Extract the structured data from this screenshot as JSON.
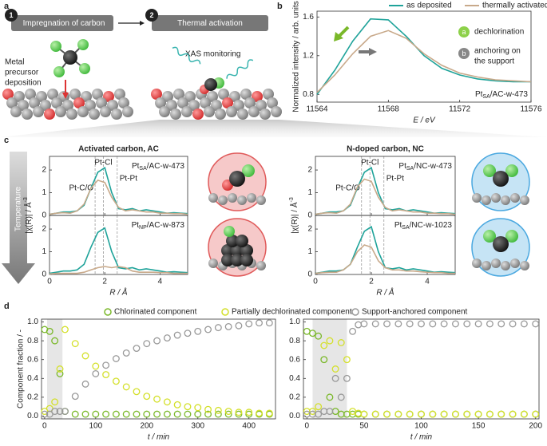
{
  "panel_labels": [
    "a",
    "b",
    "c",
    "d"
  ],
  "panel_a": {
    "steps": [
      {
        "number": "1",
        "label": "Impregnation of carbon"
      },
      {
        "number": "2",
        "label": "Thermal activation"
      }
    ],
    "precursor_label": [
      "Metal",
      "precursor",
      "deposition"
    ],
    "xas_label": "XAS monitoring"
  },
  "panel_c": {
    "temperature_label": "Temperature"
  },
  "chart_data": [
    {
      "type": "line",
      "xlabel": "E / eV",
      "ylabel": "Normalized intensity / arb. units",
      "x": [
        11564,
        11565,
        11566,
        11567,
        11568,
        11569,
        11570,
        11571,
        11572,
        11573,
        11574,
        11575,
        11576
      ],
      "series": [
        {
          "name": "as deposited",
          "color": "#1fa39a",
          "values": [
            0.8,
            1.05,
            1.35,
            1.58,
            1.57,
            1.4,
            1.2,
            1.07,
            1.0,
            0.96,
            0.94,
            0.93,
            0.93
          ]
        },
        {
          "name": "thermally activated",
          "color": "#c8a98a",
          "values": [
            0.82,
            1.0,
            1.22,
            1.4,
            1.46,
            1.38,
            1.22,
            1.1,
            1.02,
            0.98,
            0.95,
            0.94,
            0.93
          ]
        }
      ],
      "xlim": [
        11564,
        11576
      ],
      "xticks": [
        11564,
        11568,
        11572,
        11576
      ],
      "ylim": [
        0.72,
        1.66
      ],
      "yticks": [
        0.8,
        1.2,
        1.6
      ],
      "legend": "top",
      "sample": {
        "main": "Pt",
        "sub": "SA",
        "rest": "/AC-w-473"
      },
      "annotations": [
        {
          "badge": "a",
          "text": [
            "dechlorination"
          ]
        },
        {
          "badge": "b",
          "text": [
            "anchoring on",
            "the support"
          ]
        }
      ]
    },
    {
      "type": "line",
      "title": "Activated carbon, AC",
      "ylabel": {
        "main": "|χ(R)| / Å",
        "sup": "-3"
      },
      "x": [
        0,
        0.25,
        0.5,
        0.75,
        1,
        1.25,
        1.5,
        1.75,
        2,
        2.25,
        2.5,
        2.75,
        3,
        3.25,
        3.5,
        3.75,
        4,
        4.25,
        4.5,
        4.75,
        5
      ],
      "series": [
        {
          "color": "#1fa39a",
          "values": [
            0.05,
            0.1,
            0.15,
            0.15,
            0.2,
            0.45,
            1.2,
            1.9,
            2.1,
            1.0,
            0.3,
            0.25,
            0.3,
            0.2,
            0.25,
            0.2,
            0.15,
            0.1,
            0.12,
            0.1,
            0.08
          ]
        },
        {
          "color": "#c8a98a",
          "values": [
            0.05,
            0.1,
            0.12,
            0.1,
            0.2,
            0.5,
            1.2,
            1.55,
            1.45,
            0.8,
            0.35,
            0.2,
            0.25,
            0.2,
            0.15,
            0.15,
            0.1,
            0.1,
            0.08,
            0.08,
            0.05
          ]
        }
      ],
      "xlim": [
        0,
        5
      ],
      "xticks": [
        0,
        2,
        4
      ],
      "ylim": [
        0,
        2.6
      ],
      "yticks": [
        0,
        1,
        2
      ],
      "ref_lines": [
        1.65,
        1.95,
        2.45
      ],
      "ref_labels": [
        "Pt-C/O",
        "Pt-Cl",
        "Pt-Pt"
      ],
      "sample": {
        "main": "Pt",
        "sub": "SA",
        "rest": "/AC-w-473"
      }
    },
    {
      "type": "line",
      "xlabel": "R / Å",
      "x": [
        0,
        0.25,
        0.5,
        0.75,
        1,
        1.25,
        1.5,
        1.75,
        2,
        2.25,
        2.5,
        2.75,
        3,
        3.25,
        3.5,
        3.75,
        4,
        4.25,
        4.5,
        4.75,
        5
      ],
      "series": [
        {
          "color": "#1fa39a",
          "values": [
            0.05,
            0.1,
            0.15,
            0.15,
            0.2,
            0.45,
            1.2,
            1.85,
            2.05,
            1.0,
            0.3,
            0.25,
            0.3,
            0.2,
            0.25,
            0.2,
            0.15,
            0.1,
            0.12,
            0.1,
            0.08
          ]
        },
        {
          "color": "#c8a98a",
          "values": [
            0.02,
            0.05,
            0.05,
            0.05,
            0.05,
            0.1,
            0.2,
            0.3,
            0.35,
            0.3,
            0.35,
            0.3,
            0.15,
            0.1,
            0.1,
            0.1,
            0.08,
            0.08,
            0.05,
            0.05,
            0.05
          ]
        }
      ],
      "xlim": [
        0,
        5
      ],
      "xticks": [
        0,
        2,
        4
      ],
      "ylim": [
        0,
        2.6
      ],
      "yticks": [
        0,
        1,
        2
      ],
      "ref_lines": [
        1.65,
        1.95,
        2.45
      ],
      "sample": {
        "main": "Pt",
        "sub": "NP",
        "rest": "/AC-w-873"
      }
    },
    {
      "type": "line",
      "title": "N-doped carbon, NC",
      "ylabel": {
        "main": "|χ(R)| / Å",
        "sup": "-3"
      },
      "x": [
        0,
        0.25,
        0.5,
        0.75,
        1,
        1.25,
        1.5,
        1.75,
        2,
        2.25,
        2.5,
        2.75,
        3,
        3.25,
        3.5,
        3.75,
        4,
        4.25,
        4.5,
        4.75,
        5
      ],
      "series": [
        {
          "color": "#1fa39a",
          "values": [
            0.05,
            0.1,
            0.15,
            0.15,
            0.2,
            0.45,
            1.2,
            1.9,
            2.1,
            1.0,
            0.3,
            0.25,
            0.3,
            0.2,
            0.25,
            0.2,
            0.15,
            0.1,
            0.12,
            0.1,
            0.08
          ]
        },
        {
          "color": "#c8a98a",
          "values": [
            0.05,
            0.1,
            0.12,
            0.1,
            0.2,
            0.5,
            1.25,
            1.6,
            1.5,
            0.8,
            0.35,
            0.2,
            0.25,
            0.2,
            0.15,
            0.15,
            0.1,
            0.1,
            0.08,
            0.08,
            0.05
          ]
        }
      ],
      "xlim": [
        0,
        5
      ],
      "xticks": [
        0,
        2,
        4
      ],
      "ylim": [
        0,
        2.6
      ],
      "yticks": [
        0,
        1,
        2
      ],
      "ref_lines": [
        1.65,
        1.95,
        2.45
      ],
      "ref_labels": [
        "Pt-C/O",
        "Pt-Cl",
        "Pt-Pt"
      ],
      "sample": {
        "main": "Pt",
        "sub": "SA",
        "rest": "/NC-w-473"
      }
    },
    {
      "type": "line",
      "xlabel": "R / Å",
      "x": [
        0,
        0.25,
        0.5,
        0.75,
        1,
        1.25,
        1.5,
        1.75,
        2,
        2.25,
        2.5,
        2.75,
        3,
        3.25,
        3.5,
        3.75,
        4,
        4.25,
        4.5,
        4.75,
        5
      ],
      "series": [
        {
          "color": "#1fa39a",
          "values": [
            0.05,
            0.1,
            0.15,
            0.15,
            0.2,
            0.45,
            1.2,
            1.9,
            2.1,
            1.0,
            0.3,
            0.25,
            0.3,
            0.2,
            0.25,
            0.2,
            0.15,
            0.1,
            0.12,
            0.1,
            0.08
          ]
        },
        {
          "color": "#c8a98a",
          "values": [
            0.05,
            0.08,
            0.1,
            0.1,
            0.2,
            0.45,
            1.0,
            1.3,
            1.2,
            0.6,
            0.3,
            0.2,
            0.2,
            0.15,
            0.15,
            0.12,
            0.1,
            0.08,
            0.08,
            0.05,
            0.05
          ]
        }
      ],
      "xlim": [
        0,
        5
      ],
      "xticks": [
        0,
        2,
        4
      ],
      "ylim": [
        0,
        2.6
      ],
      "yticks": [
        0,
        1,
        2
      ],
      "ref_lines": [
        1.65,
        1.95,
        2.45
      ],
      "sample": {
        "main": "Pt",
        "sub": "SA",
        "rest": "/NC-w-1023"
      }
    },
    {
      "type": "scatter",
      "xlabel": "t / min",
      "ylabel": "Component fraction / -",
      "legend": "top",
      "x": [
        0,
        10,
        20,
        30,
        40,
        60,
        80,
        100,
        120,
        140,
        160,
        180,
        200,
        220,
        240,
        260,
        280,
        300,
        320,
        340,
        360,
        380,
        400,
        420,
        440
      ],
      "series": [
        {
          "name": "Chlorinated component",
          "color": "#7ab829",
          "values": [
            0.92,
            0.9,
            0.8,
            0.45,
            0.05,
            0.02,
            0.02,
            0.02,
            0.02,
            0.02,
            0.02,
            0.02,
            0.02,
            0.02,
            0.02,
            0.02,
            0.02,
            0.02,
            0.02,
            0.02,
            0.02,
            0.02,
            0.02,
            0.02,
            0.02
          ]
        },
        {
          "name": "Partially dechlorinated component",
          "color": "#d4e02a",
          "values": [
            0.05,
            0.08,
            0.15,
            0.5,
            0.92,
            0.77,
            0.64,
            0.53,
            0.44,
            0.37,
            0.31,
            0.26,
            0.21,
            0.18,
            0.15,
            0.12,
            0.1,
            0.09,
            0.07,
            0.06,
            0.05,
            0.04,
            0.04,
            0.03,
            0.03
          ]
        },
        {
          "name": "Support-anchored component",
          "color": "#999999",
          "values": [
            0.02,
            0.02,
            0.05,
            0.05,
            0.05,
            0.21,
            0.34,
            0.45,
            0.54,
            0.61,
            0.67,
            0.72,
            0.77,
            0.8,
            0.83,
            0.86,
            0.88,
            0.9,
            0.92,
            0.94,
            0.95,
            0.96,
            0.98,
            0.99,
            0.99
          ]
        }
      ],
      "xlim": [
        -6,
        452
      ],
      "xticks": [
        0,
        100,
        200,
        300,
        400
      ],
      "ylim": [
        -0.03,
        1.03
      ],
      "yticks": [
        {
          "value": 0,
          "label": "0.0"
        },
        0.2,
        0.4,
        0.6,
        0.8,
        {
          "value": 1,
          "label": "1.0"
        }
      ],
      "shaded_xrange": [
        5,
        35
      ]
    },
    {
      "type": "scatter",
      "xlabel": "t / min",
      "x": [
        0,
        5,
        10,
        15,
        20,
        25,
        30,
        35,
        40,
        45,
        50,
        60,
        70,
        80,
        90,
        100,
        110,
        120,
        130,
        140,
        150,
        160,
        170,
        180,
        190,
        200
      ],
      "series": [
        {
          "color": "#7ab829",
          "values": [
            0.9,
            0.88,
            0.85,
            0.6,
            0.2,
            0.05,
            0.02,
            0.02,
            0.02,
            0.02,
            0.02,
            0.02,
            0.02,
            0.02,
            0.02,
            0.02,
            0.02,
            0.02,
            0.02,
            0.02,
            0.02,
            0.02,
            0.02,
            0.02,
            0.02,
            0.02
          ]
        },
        {
          "color": "#d4e02a",
          "values": [
            0.05,
            0.05,
            0.1,
            0.75,
            0.8,
            0.5,
            0.78,
            0.6,
            0.05,
            0.03,
            0.02,
            0.02,
            0.02,
            0.02,
            0.02,
            0.02,
            0.02,
            0.02,
            0.02,
            0.02,
            0.02,
            0.02,
            0.02,
            0.02,
            0.02,
            0.02
          ]
        },
        {
          "color": "#999999",
          "values": [
            0.02,
            0.02,
            0.02,
            0.05,
            0.05,
            0.4,
            0.2,
            0.4,
            0.9,
            0.97,
            0.98,
            0.98,
            0.98,
            0.98,
            0.98,
            0.98,
            0.98,
            0.98,
            0.98,
            0.98,
            0.98,
            0.98,
            0.98,
            0.98,
            0.98,
            0.98
          ]
        }
      ],
      "xlim": [
        -3,
        203
      ],
      "xticks": [
        0,
        50,
        100,
        150,
        200
      ],
      "ylim": [
        -0.03,
        1.03
      ],
      "yticks": [
        {
          "value": 0,
          "label": "0.0"
        },
        0.2,
        0.4,
        0.6,
        0.8,
        {
          "value": 1,
          "label": "1.0"
        }
      ],
      "shaded_xrange": [
        5,
        35
      ]
    }
  ]
}
